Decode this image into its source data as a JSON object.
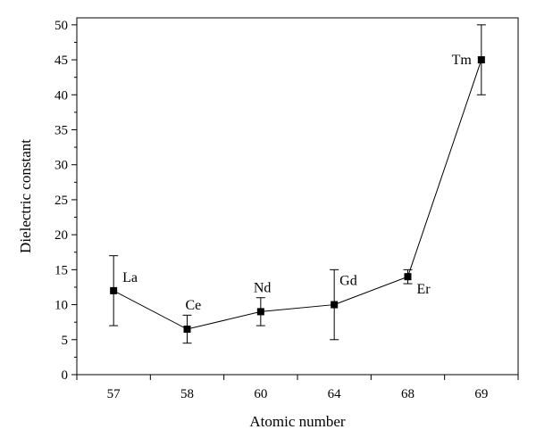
{
  "chart_data": {
    "type": "line",
    "xlabel": "Atomic number",
    "ylabel": "Dielectric constant",
    "categories": [
      "57",
      "58",
      "60",
      "64",
      "68",
      "69"
    ],
    "x_tick_labels": [
      "57",
      "58",
      "60",
      "64",
      "68",
      "69"
    ],
    "y_tick_labels": [
      "0",
      "5",
      "10",
      "15",
      "20",
      "25",
      "30",
      "35",
      "40",
      "45",
      "50"
    ],
    "ylim": [
      0,
      51
    ],
    "grid": false,
    "legend": "none",
    "series": [
      {
        "values": [
          12,
          6.5,
          9,
          10,
          14,
          45
        ],
        "error": [
          5,
          2,
          2,
          5,
          1,
          5
        ],
        "point_labels": [
          "La",
          "Ce",
          "Nd",
          "Gd",
          "Er",
          "Tm"
        ],
        "marker": "square",
        "color": "#000000"
      }
    ]
  }
}
